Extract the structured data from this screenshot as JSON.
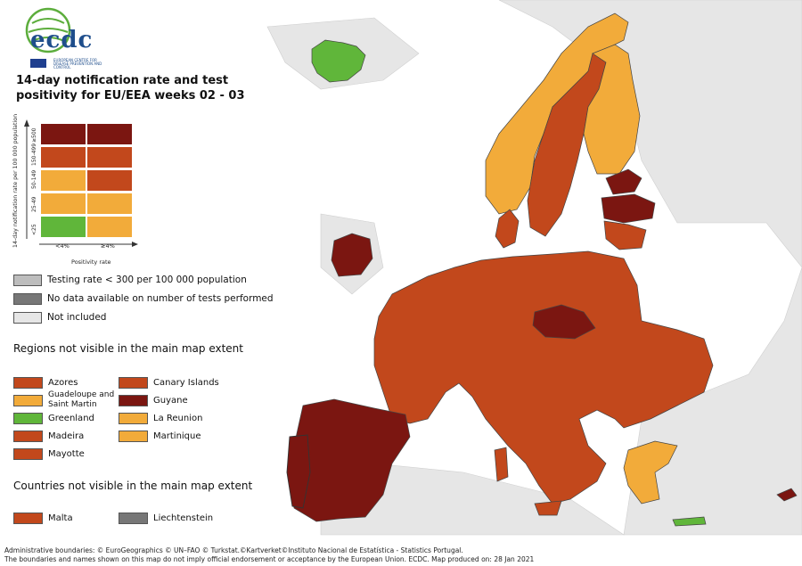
{
  "title": "14-day notification rate and test positivity for EU/EEA weeks 02 - 03",
  "logo": {
    "text": "ecdc",
    "subtitle": "EUROPEAN CENTRE FOR DISEASE PREVENTION AND CONTROL"
  },
  "colors": {
    "dark_red": "#7b1611",
    "red": "#c2481c",
    "orange": "#f2ab3a",
    "green": "#60b63a",
    "light_grey": "#bdbdbd",
    "dark_grey": "#777777",
    "not_included": "#e6e6e6",
    "sea": "#ffffff"
  },
  "matrix": {
    "y_axis_label": "14-day notification rate per 100 000 population",
    "x_axis_label": "Positivity rate",
    "rows": [
      "≥500",
      "150-499",
      "50-149",
      "25-49",
      "<25"
    ],
    "columns": [
      "<4%",
      "≥4%"
    ],
    "cells": [
      [
        "dark_red",
        "dark_red"
      ],
      [
        "red",
        "red"
      ],
      [
        "orange",
        "red"
      ],
      [
        "orange",
        "orange"
      ],
      [
        "green",
        "orange"
      ]
    ]
  },
  "legend": [
    {
      "label": "Testing rate < 300 per 100 000 population",
      "color": "light_grey"
    },
    {
      "label": "No data available on number of tests performed",
      "color": "dark_grey"
    },
    {
      "label": "Not included",
      "color": "not_included"
    }
  ],
  "regions_heading": "Regions not visible in the main map extent",
  "regions": [
    {
      "name": "Azores",
      "color": "red"
    },
    {
      "name": "Guadeloupe and Saint Martin",
      "color": "orange"
    },
    {
      "name": "Greenland",
      "color": "green"
    },
    {
      "name": "Madeira",
      "color": "red"
    },
    {
      "name": "Mayotte",
      "color": "red"
    },
    {
      "name": "Canary Islands",
      "color": "red"
    },
    {
      "name": "Guyane",
      "color": "dark_red"
    },
    {
      "name": "La Reunion",
      "color": "orange"
    },
    {
      "name": "Martinique",
      "color": "orange"
    }
  ],
  "countries_heading": "Countries not visible in the main map extent",
  "countries": [
    {
      "name": "Malta",
      "color": "red"
    },
    {
      "name": "Liechtenstein",
      "color": "dark_grey"
    }
  ],
  "footer": {
    "line1": "Administrative boundaries: © EuroGeographics © UN–FAO © Turkstat.©Kartverket©Instituto Nacional de Estatística - Statistics Portugal.",
    "line2": "The boundaries and names shown on this map do not imply official endorsement or acceptance by the European Union. ECDC. Map produced on: 28 Jan 2021"
  }
}
